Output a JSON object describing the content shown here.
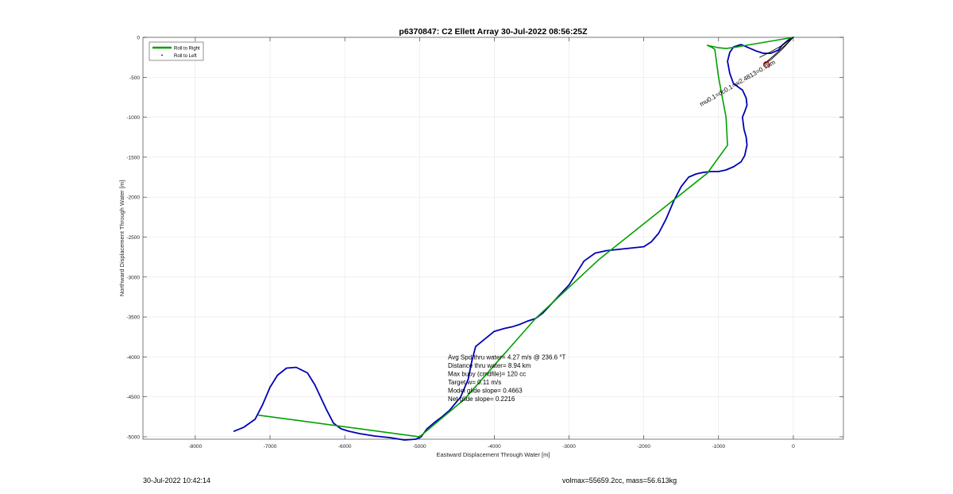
{
  "chart_data": {
    "type": "line",
    "title": "p6370847: C2 Ellett Array 30-Jul-2022 08:56:25Z",
    "xlabel": "Eastward Displacement Through Water [m]",
    "ylabel": "Northward Displacement Through Water [m]",
    "xlim": [
      -8700,
      670
    ],
    "ylim": [
      -5030,
      0
    ],
    "grid": true,
    "xticks": [
      -8000,
      -7000,
      -6000,
      -5000,
      -4000,
      -3000,
      -2000,
      -1000,
      0
    ],
    "yticks": [
      0,
      -500,
      -1000,
      -1500,
      -2000,
      -2500,
      -3000,
      -3500,
      -4000,
      -4500,
      -5000
    ],
    "legend": {
      "placement": "top-left",
      "entries": [
        {
          "label": "Roll to Right",
          "color": "#00a000",
          "marker": "line"
        },
        {
          "label": "Roll to Left",
          "color": "#000000",
          "marker": "dot"
        }
      ]
    },
    "series": [
      {
        "color": "#0000b4",
        "x": [
          -7480,
          -7350,
          -7200,
          -7100,
          -7000,
          -6900,
          -6780,
          -6650,
          -6500,
          -6400,
          -6250,
          -6150,
          -6050,
          -5950,
          -5800,
          -5600,
          -5400,
          -5200,
          -5050,
          -4980,
          -4900,
          -4800,
          -4700,
          -4600,
          -4450,
          -4350,
          -4300,
          -4250,
          -4000,
          -3850,
          -3750,
          -3650,
          -3550,
          -3450,
          -3350,
          -3200,
          -3000,
          -2800,
          -2650,
          -2550,
          -2500,
          -2400,
          -2300,
          -2200,
          -2100,
          -2000,
          -1900,
          -1800,
          -1700,
          -1600,
          -1500,
          -1450,
          -1400,
          -1300,
          -1200,
          -1100,
          -1000,
          -900,
          -800,
          -700,
          -650,
          -620,
          -630,
          -660,
          -680,
          -650,
          -620,
          -630,
          -680,
          -800,
          -850,
          -880,
          -850,
          -800,
          -700,
          -600,
          -500,
          -400,
          -300,
          -200,
          -150,
          -100,
          -50,
          0
        ],
        "y": [
          -4930,
          -4880,
          -4780,
          -4600,
          -4380,
          -4230,
          -4140,
          -4130,
          -4200,
          -4350,
          -4650,
          -4830,
          -4900,
          -4930,
          -4960,
          -4990,
          -5010,
          -5040,
          -5030,
          -5000,
          -4900,
          -4820,
          -4750,
          -4670,
          -4500,
          -4280,
          -4050,
          -3870,
          -3680,
          -3640,
          -3620,
          -3590,
          -3550,
          -3520,
          -3450,
          -3300,
          -3100,
          -2800,
          -2700,
          -2680,
          -2670,
          -2660,
          -2650,
          -2640,
          -2630,
          -2620,
          -2560,
          -2450,
          -2270,
          -2050,
          -1870,
          -1810,
          -1750,
          -1710,
          -1690,
          -1680,
          -1680,
          -1660,
          -1620,
          -1560,
          -1480,
          -1350,
          -1250,
          -1150,
          -1000,
          -930,
          -850,
          -760,
          -660,
          -580,
          -450,
          -300,
          -190,
          -120,
          -90,
          -130,
          -170,
          -200,
          -200,
          -160,
          -100,
          -60,
          -20,
          0
        ]
      },
      {
        "color": "#00a000",
        "x": [
          -7150,
          -5000,
          -4400,
          -3450,
          -2600,
          -1150,
          -880,
          -900,
          -1000,
          -1050,
          -1100,
          -1150,
          -1000,
          -900,
          -750,
          -500,
          -250,
          0
        ],
        "y": [
          -4730,
          -5000,
          -4530,
          -3520,
          -2780,
          -1700,
          -1350,
          -1000,
          -500,
          -150,
          -120,
          -100,
          -130,
          -140,
          -120,
          -80,
          -40,
          0
        ]
      },
      {
        "color": "#000000",
        "x": [
          -450,
          -300,
          -150,
          0,
          -150,
          -300,
          -400,
          -250,
          -100,
          0
        ],
        "y": [
          -250,
          -180,
          -100,
          0,
          -150,
          -280,
          -340,
          -220,
          -90,
          0
        ]
      }
    ],
    "annotations": [
      {
        "text": "Avg Spd thru water=  4.27 m/s @ 236.6 °T",
        "x": -4620,
        "y": -4030
      },
      {
        "text": "Distance thru water=  8.94 km",
        "x": -4620,
        "y": -4135
      },
      {
        "text": "Max buoy (cmdfile)= 120 cc",
        "x": -4620,
        "y": -4240
      },
      {
        "text": "Target w= 0.11 m/s",
        "x": -4620,
        "y": -4345
      },
      {
        "text": "Model glide slope= 0.4663",
        "x": -4620,
        "y": -4450
      },
      {
        "text": "Net glide slope= 0.2216",
        "x": -4620,
        "y": -4555
      }
    ],
    "rotated_label": "mu0.1=dc0.1=w2.4813=0.75m",
    "end_marker": {
      "x": -360,
      "y": -340,
      "color": "#e00000"
    }
  },
  "footer": {
    "left": "30-Jul-2022 10:42:14",
    "right": "volmax=55659.2cc, mass=56.613kg"
  }
}
